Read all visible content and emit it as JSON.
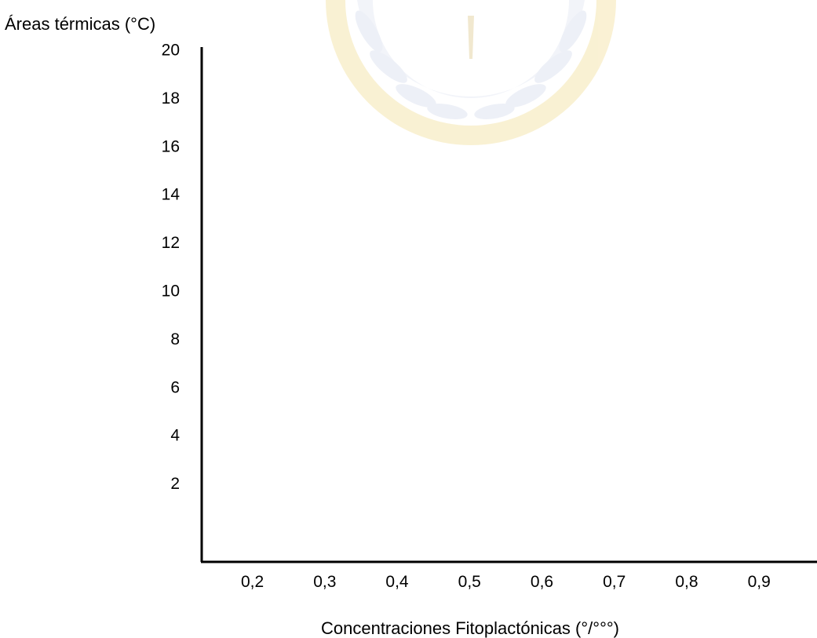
{
  "chart_data": {
    "type": "scatter",
    "title": "",
    "xlabel": "Concentraciones Fitoplactónicas (°/°°°)",
    "ylabel": "Áreas térmicas (°C)",
    "x_ticks": [
      "0,2",
      "0,3",
      "0,4",
      "0,5",
      "0,6",
      "0,7",
      "0,8",
      "0,9"
    ],
    "x_tick_values": [
      0.2,
      0.3,
      0.4,
      0.5,
      0.6,
      0.7,
      0.8,
      0.9
    ],
    "y_ticks": [
      "2",
      "4",
      "6",
      "8",
      "10",
      "12",
      "14",
      "16",
      "18",
      "20"
    ],
    "y_tick_values": [
      2,
      4,
      6,
      8,
      10,
      12,
      14,
      16,
      18,
      20
    ],
    "xlim": [
      0.13,
      0.98
    ],
    "ylim": [
      0,
      20
    ],
    "series": [],
    "grid": false,
    "axis_color": "#000000",
    "watermark_colors": [
      "#f2dc8c",
      "#dde3f0"
    ]
  }
}
